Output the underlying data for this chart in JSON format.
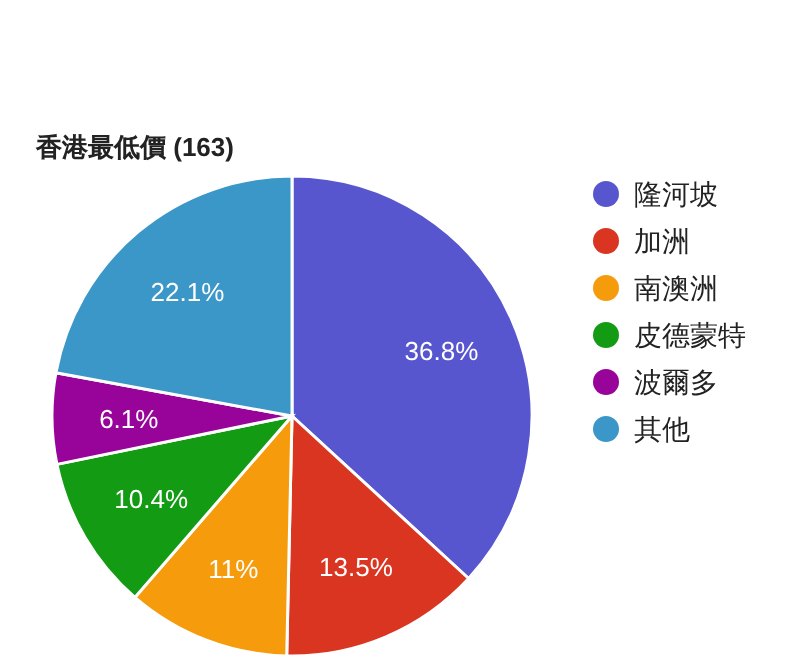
{
  "chart_data": {
    "type": "pie",
    "title": "香港最低價 (163)",
    "categories": [
      "隆河坡",
      "加洲",
      "南澳洲",
      "皮德蒙特",
      "波爾多",
      "其他"
    ],
    "values": [
      36.8,
      13.5,
      11,
      10.4,
      6.1,
      22.1
    ],
    "value_labels": [
      "36.8%",
      "13.5%",
      "11%",
      "10.4%",
      "6.1%",
      "22.1%"
    ],
    "colors": [
      "#5856cf",
      "#d93520",
      "#f59b0c",
      "#149b14",
      "#98039a",
      "#3a97c8"
    ],
    "legend": "right"
  }
}
